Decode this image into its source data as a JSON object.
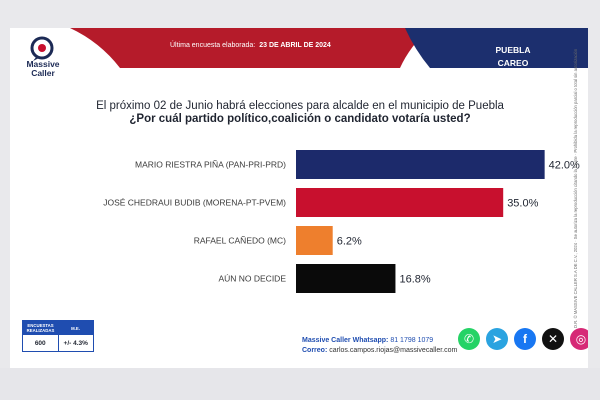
{
  "header": {
    "brand_line1": "Massive",
    "brand_line2": "Caller",
    "survey_label": "Última encuesta elaborada:",
    "survey_date": "23 DE ABRIL DE 2024",
    "region_line1": "PUEBLA",
    "region_line2": "CAREO"
  },
  "question": {
    "line1": "El próximo 02 de Junio habrá elecciones para alcalde en el municipio de Puebla",
    "line2": "¿Por cuál partido político,coalición o candidato votaría usted?"
  },
  "chart_data": {
    "type": "bar",
    "orientation": "horizontal",
    "title": "",
    "xlabel": "",
    "ylabel": "",
    "categories": [
      "MARIO RIESTRA PIÑA (PAN-PRI-PRD)",
      "JOSÉ CHEDRAUI BUDIB (MORENA-PT-PVEM)",
      "RAFAEL CAÑEDO (MC)",
      "AÚN NO DECIDE"
    ],
    "values": [
      42.0,
      35.0,
      6.2,
      16.8
    ],
    "value_labels": [
      "42.0%",
      "35.0%",
      "6.2%",
      "16.8%"
    ],
    "colors": [
      "#1c2a6b",
      "#c8102e",
      "#ee7f2d",
      "#0a0a0a"
    ],
    "xlim": [
      0,
      50
    ],
    "grid": false,
    "legend": "none"
  },
  "legal": {
    "text": "D.R. © MASSIVE CALLER S.A DE C.V., 2024 · Se autoriza la reproducción citando la fuente · Prohibida la reproducción parcial o total sin autorización"
  },
  "stats": {
    "col1_header": "ENCUESTAS REALIZADAS",
    "col2_header": "M.E.",
    "col1_value": "600",
    "col2_value": "+/- 4.3%"
  },
  "contact": {
    "whatsapp_label": "Massive Caller Whatsapp:",
    "whatsapp_number": "81 1798 1079",
    "email_label": "Correo:",
    "email": "carlos.campos.riojas@massivecaller.com"
  },
  "social": [
    {
      "name": "whatsapp-icon",
      "color": "#25d366",
      "glyph": "✆"
    },
    {
      "name": "telegram-icon",
      "color": "#2aa3e0",
      "glyph": "➤"
    },
    {
      "name": "facebook-icon",
      "color": "#1877f2",
      "glyph": "f"
    },
    {
      "name": "x-icon",
      "color": "#111111",
      "glyph": "✕"
    },
    {
      "name": "instagram-icon",
      "color": "#d62976",
      "glyph": "◎"
    }
  ]
}
